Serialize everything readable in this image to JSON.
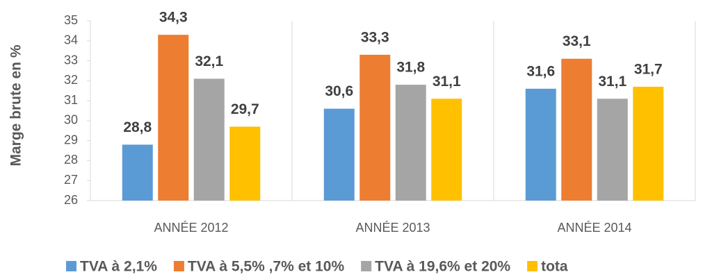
{
  "chart_data": {
    "type": "bar",
    "y_axis_label": "Marge brute en %",
    "categories": [
      "ANNÉE 2012",
      "ANNÉE 2013",
      "ANNÉE 2014"
    ],
    "series": [
      {
        "name": "TVA à 2,1%",
        "color": "#5b9bd5",
        "values": [
          28.8,
          30.6,
          31.6
        ],
        "value_labels": [
          "28,8",
          "30,6",
          "31,6"
        ]
      },
      {
        "name": "TVA à 5,5% ,7% et 10%",
        "color": "#ed7d31",
        "values": [
          34.3,
          33.3,
          33.1
        ],
        "value_labels": [
          "34,3",
          "33,3",
          "33,1"
        ]
      },
      {
        "name": "TVA à 19,6% et 20%",
        "color": "#a5a5a5",
        "values": [
          32.1,
          31.8,
          31.1
        ],
        "value_labels": [
          "32,1",
          "31,8",
          "31,1"
        ]
      },
      {
        "name": "tota",
        "color": "#ffc000",
        "values": [
          29.7,
          31.1,
          31.7
        ],
        "value_labels": [
          "29,7",
          "31,1",
          "31,7"
        ]
      }
    ],
    "ylim": [
      26,
      35
    ],
    "yticks": [
      26,
      27,
      28,
      29,
      30,
      31,
      32,
      33,
      34,
      35
    ],
    "legend": "bottom"
  }
}
